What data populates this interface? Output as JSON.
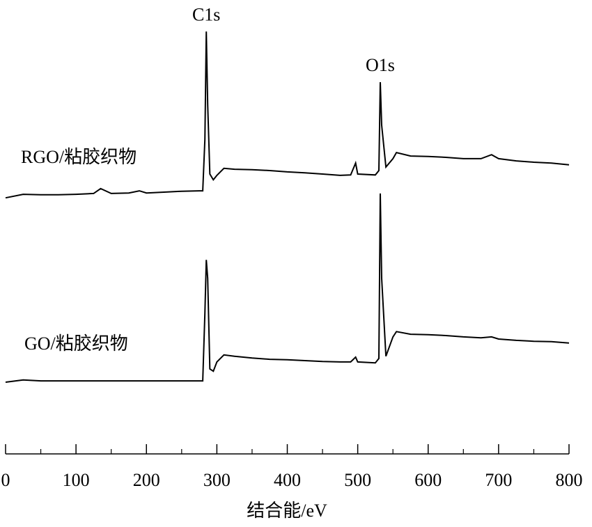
{
  "chart_data": {
    "type": "line",
    "xlabel": "结合能/eV",
    "xlim": [
      0,
      800
    ],
    "xticks": [
      0,
      100,
      200,
      300,
      400,
      500,
      600,
      700,
      800
    ],
    "xminorticks": [
      50,
      150,
      250,
      350,
      450,
      550,
      650,
      750
    ],
    "ylim": [
      0,
      100
    ],
    "x": [
      0,
      25,
      50,
      75,
      100,
      125,
      135,
      150,
      175,
      190,
      200,
      225,
      250,
      275,
      280,
      283,
      285,
      287,
      290,
      295,
      300,
      310,
      325,
      350,
      375,
      400,
      425,
      450,
      475,
      490,
      497,
      500,
      525,
      530,
      532,
      534,
      540,
      550,
      555,
      575,
      600,
      625,
      650,
      675,
      690,
      700,
      725,
      750,
      775,
      800
    ],
    "series": [
      {
        "name": "RGO/粘胶织物",
        "color": "#000000",
        "values": [
          58.2,
          59.0,
          58.9,
          58.9,
          59.0,
          59.2,
          60.3,
          59.2,
          59.3,
          59.8,
          59.3,
          59.5,
          59.7,
          59.8,
          59.8,
          71.5,
          96.0,
          79.4,
          63.6,
          62.3,
          63.3,
          64.9,
          64.7,
          64.6,
          64.4,
          64.1,
          63.9,
          63.6,
          63.3,
          63.4,
          66.1,
          63.6,
          63.4,
          64.4,
          84.5,
          74.7,
          65.2,
          67.1,
          68.5,
          67.7,
          67.6,
          67.4,
          67.1,
          67.1,
          68.0,
          67.1,
          66.6,
          66.3,
          66.1,
          65.7
        ]
      },
      {
        "name": "GO/粘胶织物",
        "color": "#000000",
        "values": [
          16.3,
          16.8,
          16.6,
          16.6,
          16.6,
          16.6,
          16.6,
          16.6,
          16.6,
          16.6,
          16.6,
          16.6,
          16.6,
          16.6,
          16.6,
          32.0,
          44.1,
          39.9,
          19.3,
          18.8,
          20.9,
          22.5,
          22.2,
          21.8,
          21.5,
          21.4,
          21.2,
          21.0,
          20.9,
          20.9,
          22.0,
          20.9,
          20.7,
          21.7,
          59.2,
          39.9,
          22.2,
          26.6,
          27.8,
          27.2,
          27.1,
          26.9,
          26.6,
          26.4,
          26.6,
          26.1,
          25.8,
          25.6,
          25.5,
          25.2
        ]
      }
    ],
    "annotations": [
      {
        "text": "C1s",
        "x": 285
      },
      {
        "text": "O1s",
        "x": 532
      }
    ]
  }
}
